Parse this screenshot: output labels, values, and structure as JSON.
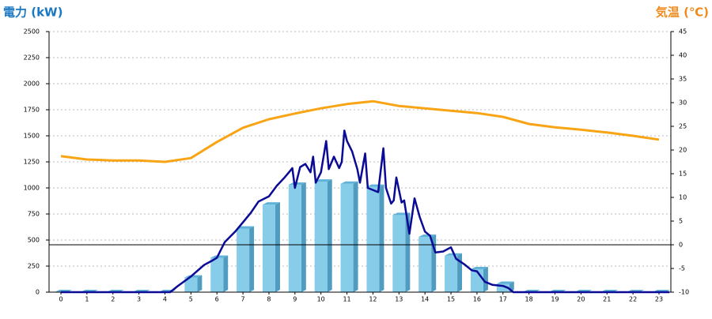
{
  "chart_data": {
    "type": "combo",
    "y_title": "電力 (kW)",
    "y2_title": "気温 (℃)",
    "categories": [
      "0",
      "1",
      "2",
      "3",
      "4",
      "5",
      "6",
      "7",
      "8",
      "9",
      "10",
      "11",
      "12",
      "13",
      "14",
      "15",
      "16",
      "17",
      "18",
      "19",
      "20",
      "21",
      "22",
      "23"
    ],
    "ylim": [
      0,
      2500
    ],
    "yticks": [
      0,
      250,
      500,
      750,
      1000,
      1250,
      1500,
      1750,
      2000,
      2250,
      2500
    ],
    "y2lim": [
      -10,
      45
    ],
    "y2ticks": [
      -10,
      -5,
      0,
      5,
      10,
      15,
      20,
      25,
      30,
      35,
      40,
      45
    ],
    "grid": true,
    "reference_line": {
      "axis": "y2",
      "value": 0
    },
    "series": [
      {
        "type": "bar",
        "color": "#87cdea",
        "values": [
          0,
          0,
          0,
          0,
          0,
          140,
          330,
          610,
          840,
          1030,
          1060,
          1040,
          1010,
          740,
          530,
          350,
          220,
          80,
          0,
          0,
          0,
          0,
          0,
          0
        ]
      },
      {
        "type": "line",
        "color": "#0a0a96",
        "x": [
          0,
          4.2,
          4.5,
          5.0,
          5.5,
          5.8,
          6.0,
          6.3,
          6.7,
          7.0,
          7.3,
          7.6,
          8.0,
          8.3,
          8.6,
          8.8,
          8.9,
          9.0,
          9.2,
          9.4,
          9.6,
          9.7,
          9.8,
          10.0,
          10.2,
          10.3,
          10.5,
          10.7,
          10.8,
          10.9,
          11.0,
          11.2,
          11.4,
          11.5,
          11.7,
          11.8,
          12.0,
          12.2,
          12.4,
          12.5,
          12.7,
          12.8,
          12.9,
          13.1,
          13.2,
          13.4,
          13.6,
          13.8,
          14.0,
          14.2,
          14.4,
          14.7,
          15.0,
          15.2,
          15.5,
          15.8,
          16.0,
          16.3,
          16.6,
          17.0,
          17.2,
          17.4,
          23.4
        ],
        "values": [
          0,
          0,
          60,
          150,
          260,
          300,
          330,
          480,
          580,
          670,
          760,
          870,
          920,
          1020,
          1100,
          1160,
          1190,
          1000,
          1200,
          1230,
          1150,
          1300,
          1050,
          1150,
          1450,
          1180,
          1300,
          1190,
          1250,
          1550,
          1450,
          1350,
          1180,
          1050,
          1330,
          1000,
          980,
          960,
          1380,
          1000,
          850,
          880,
          1100,
          860,
          880,
          560,
          900,
          720,
          580,
          540,
          380,
          390,
          430,
          320,
          270,
          210,
          200,
          100,
          70,
          60,
          40,
          0,
          0
        ]
      },
      {
        "type": "line",
        "axis": "y2",
        "color": "#f8a414",
        "values": [
          18.7,
          18,
          17.8,
          17.8,
          17.5,
          18.3,
          21.7,
          24.7,
          26.5,
          27.7,
          28.8,
          29.7,
          30.3,
          29.3,
          28.8,
          28.3,
          27.8,
          27,
          25.5,
          24.8,
          24.3,
          23.7,
          23,
          22.2
        ]
      }
    ]
  }
}
